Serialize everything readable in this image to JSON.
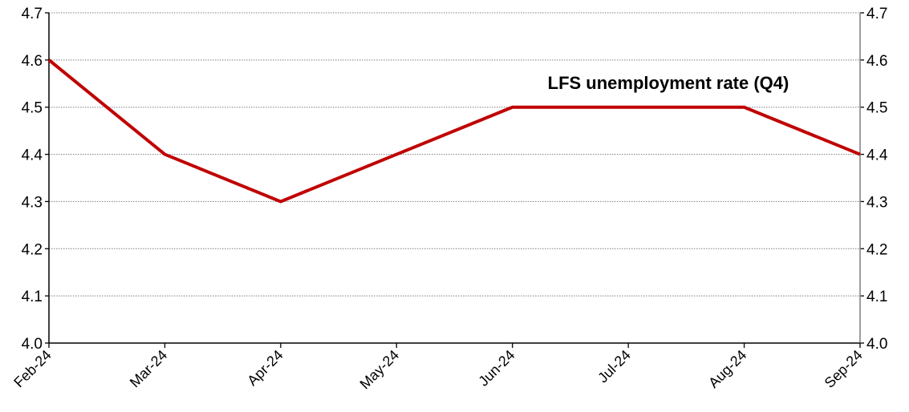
{
  "chart_data": {
    "type": "line",
    "categories": [
      "Feb-24",
      "Mar-24",
      "Apr-24",
      "May-24",
      "Jun-24",
      "Jul-24",
      "Aug-24",
      "Sep-24"
    ],
    "series": [
      {
        "name": "LFS unemployment rate (Q4)",
        "values": [
          4.6,
          4.4,
          4.3,
          4.4,
          4.5,
          4.5,
          4.5,
          4.4
        ],
        "color": "#c00000"
      }
    ],
    "ylim": [
      4.0,
      4.7
    ],
    "yticks": [
      "4.0",
      "4.1",
      "4.2",
      "4.3",
      "4.4",
      "4.5",
      "4.6",
      "4.7"
    ],
    "secondary_y_axis": true,
    "grid": "horizontal dotted",
    "annotation": "LFS unemployment rate (Q4)"
  }
}
